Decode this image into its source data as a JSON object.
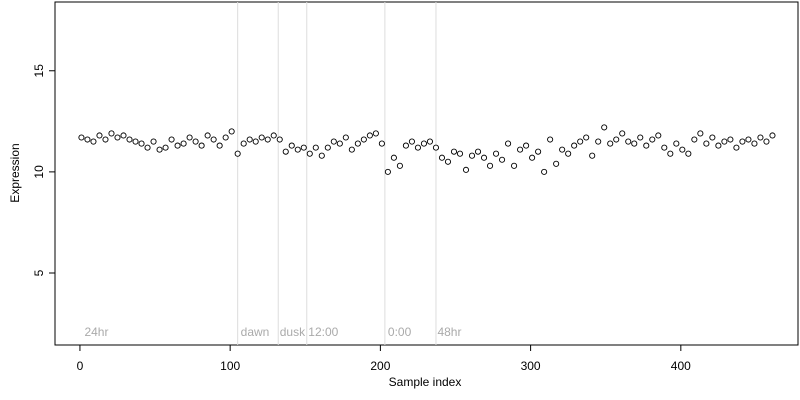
{
  "chart_data": {
    "type": "scatter",
    "x_label": "Sample index",
    "y_label": "Expression",
    "xlim": [
      -16.6,
      478
    ],
    "ylim": [
      1.44,
      18.4
    ],
    "xticks": [
      0,
      100,
      200,
      300,
      400
    ],
    "yticks": [
      5,
      10,
      15
    ],
    "color": "#ffffff",
    "vlines": [
      105,
      132,
      151,
      203,
      237
    ],
    "annotations": [
      {
        "x": 3,
        "label": "24hr"
      },
      {
        "x": 107,
        "label": "dawn"
      },
      {
        "x": 133,
        "label": "dusk"
      },
      {
        "x": 152,
        "label": "12:00"
      },
      {
        "x": 205,
        "label": "0:00"
      },
      {
        "x": 238,
        "label": "48hr"
      }
    ],
    "x": [
      1,
      5,
      9,
      13,
      17,
      21,
      25,
      29,
      33,
      37,
      41,
      45,
      49,
      53,
      57,
      61,
      65,
      69,
      73,
      77,
      81,
      85,
      89,
      93,
      97,
      101,
      105,
      109,
      113,
      117,
      121,
      125,
      129,
      133,
      137,
      141,
      145,
      149,
      153,
      157,
      161,
      165,
      169,
      173,
      177,
      181,
      185,
      189,
      193,
      197,
      201,
      205,
      209,
      213,
      217,
      221,
      225,
      229,
      233,
      237,
      241,
      245,
      249,
      253,
      257,
      261,
      265,
      269,
      273,
      277,
      281,
      285,
      289,
      293,
      297,
      301,
      305,
      309,
      313,
      317,
      321,
      325,
      329,
      333,
      337,
      341,
      345,
      349,
      353,
      357,
      361,
      365,
      369,
      373,
      377,
      381,
      385,
      389,
      393,
      397,
      401,
      405,
      409,
      413,
      417,
      421,
      425,
      429,
      433,
      437,
      441,
      445,
      449,
      453,
      457,
      461
    ],
    "values": [
      11.7,
      11.6,
      11.5,
      11.8,
      11.6,
      11.9,
      11.7,
      11.8,
      11.6,
      11.5,
      11.4,
      11.2,
      11.5,
      11.1,
      11.2,
      11.6,
      11.3,
      11.4,
      11.7,
      11.5,
      11.3,
      11.8,
      11.6,
      11.3,
      11.7,
      12.0,
      10.9,
      11.4,
      11.6,
      11.5,
      11.7,
      11.6,
      11.8,
      11.6,
      11.0,
      11.3,
      11.1,
      11.2,
      10.9,
      11.2,
      10.8,
      11.2,
      11.5,
      11.4,
      11.7,
      11.1,
      11.4,
      11.6,
      11.8,
      11.9,
      11.4,
      10.0,
      10.7,
      10.3,
      11.3,
      11.5,
      11.2,
      11.4,
      11.5,
      11.2,
      10.7,
      10.5,
      11.0,
      10.9,
      10.1,
      10.8,
      11.0,
      10.7,
      10.3,
      10.9,
      10.6,
      11.4,
      10.3,
      11.1,
      11.3,
      10.7,
      11.0,
      10.0,
      11.6,
      10.4,
      11.1,
      10.9,
      11.3,
      11.5,
      11.7,
      10.8,
      11.5,
      12.2,
      11.4,
      11.6,
      11.9,
      11.5,
      11.4,
      11.7,
      11.3,
      11.6,
      11.8,
      11.2,
      10.9,
      11.4,
      11.1,
      10.9,
      11.6,
      11.9,
      11.4,
      11.7,
      11.3,
      11.5,
      11.6,
      11.2,
      11.5,
      11.6,
      11.4,
      11.7,
      11.5,
      11.8
    ]
  }
}
